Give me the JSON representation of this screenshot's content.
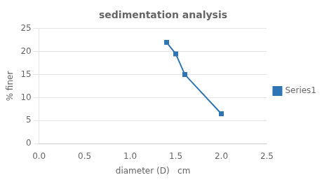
{
  "chart_data": {
    "type": "line",
    "title": "sedimentation analysis",
    "xlabel": "diameter (D)   cm",
    "ylabel": "% finer",
    "x": [
      1.4,
      1.5,
      1.6,
      2.0
    ],
    "series": [
      {
        "name": "Series1",
        "color": "#2E75B6",
        "marker": "square",
        "line_style": "solid",
        "values": [
          22,
          19.5,
          15,
          6.5
        ]
      }
    ],
    "xlim": [
      0,
      2.5
    ],
    "ylim": [
      0,
      25
    ],
    "xticks": [
      {
        "value": 0,
        "label": "0.0"
      },
      0.5,
      {
        "value": 1,
        "label": "1.0"
      },
      1.5,
      {
        "value": 2,
        "label": "2.0"
      },
      2.5
    ],
    "yticks": [
      0,
      5,
      10,
      15,
      20,
      25
    ],
    "grid": "y",
    "legend": "right"
  }
}
